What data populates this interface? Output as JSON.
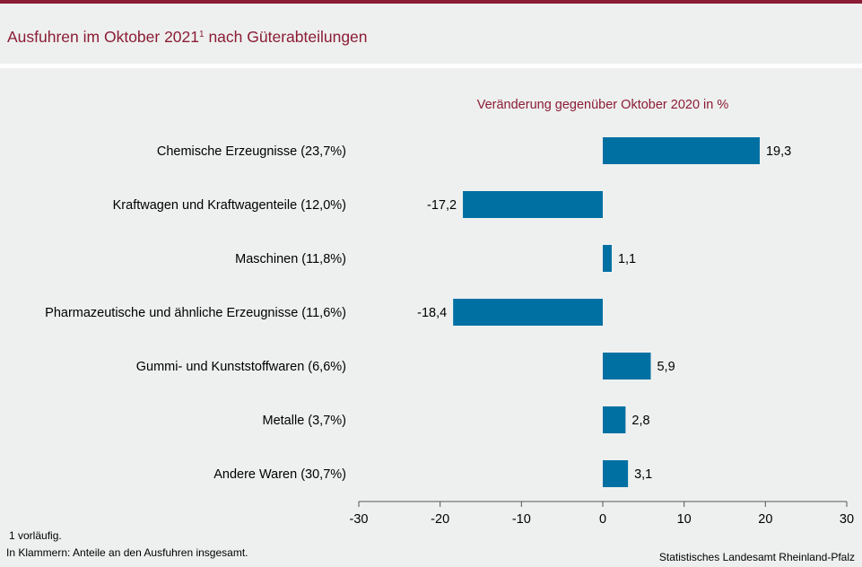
{
  "title": {
    "text": "Ausfuhren im Oktober 2021",
    "footnote_mark": "1",
    "suffix": " nach Güterabteilungen"
  },
  "footer": {
    "note1": "1 vorläufig.",
    "note2": "In Klammern: Anteile an den Ausfuhren insgesamt.",
    "source": "Statistisches Landesamt Rheinland-Pfalz"
  },
  "colors": {
    "accent": "#8b1c35",
    "bar": "#0070a3",
    "background": "#eef0ef"
  },
  "chart_data": {
    "type": "bar",
    "orientation": "horizontal",
    "title": "Ausfuhren im Oktober 2021 nach Güterabteilungen",
    "subtitle": "Veränderung gegenüber Oktober 2020 in %",
    "categories": [
      "Chemische Erzeugnisse (23,7%)",
      "Kraftwagen und Kraftwagenteile (12,0%)",
      "Maschinen (11,8%)",
      "Pharmazeutische und ähnliche Erzeugnisse (11,6%)",
      "Gummi- und Kunststoffwaren (6,6%)",
      "Metalle (3,7%)",
      "Andere Waren (30,7%)"
    ],
    "values": [
      19.3,
      -17.2,
      1.1,
      -18.4,
      5.9,
      2.8,
      3.1
    ],
    "value_labels": [
      "19,3",
      "-17,2",
      "1,1",
      "-18,4",
      "5,9",
      "2,8",
      "3,1"
    ],
    "xlim": [
      -30,
      30
    ],
    "xticks": [
      -30,
      -20,
      -10,
      0,
      10,
      20,
      30
    ],
    "xtick_labels": [
      "-30",
      "-20",
      "-10",
      "0",
      "10",
      "20",
      "30"
    ],
    "grid": false,
    "legend": "none"
  }
}
